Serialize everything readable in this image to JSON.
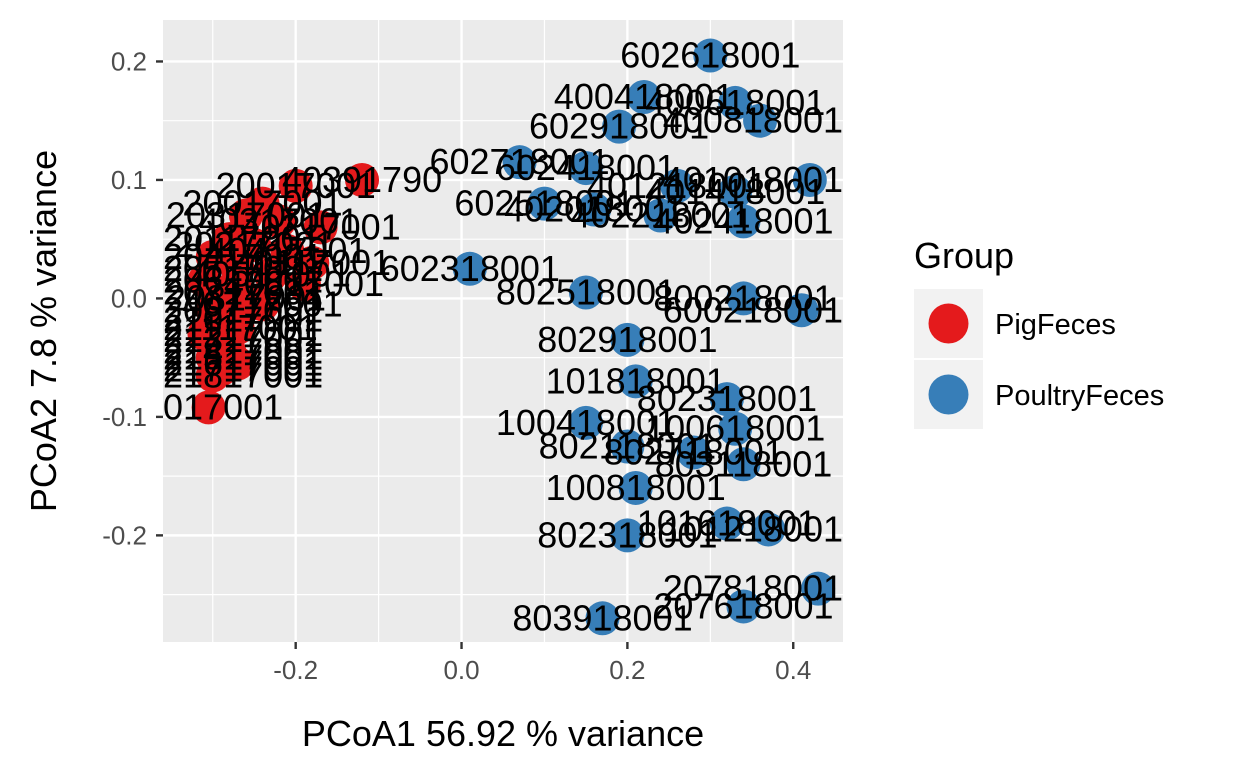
{
  "chart_data": {
    "type": "scatter",
    "xlabel": "PCoA1 56.92 % variance",
    "ylabel": "PCoA2 7.8 % variance",
    "xlim": [
      -0.36,
      0.46
    ],
    "ylim": [
      -0.29,
      0.235
    ],
    "x_ticks": [
      {
        "value": -0.2,
        "label": "-0.2"
      },
      {
        "value": 0.0,
        "label": "0.0"
      },
      {
        "value": 0.2,
        "label": "0.2"
      },
      {
        "value": 0.4,
        "label": "0.4"
      }
    ],
    "y_ticks": [
      {
        "value": 0.2,
        "label": "0.2"
      },
      {
        "value": 0.1,
        "label": "0.1"
      },
      {
        "value": 0.0,
        "label": "0.0"
      },
      {
        "value": -0.1,
        "label": "-0.1"
      },
      {
        "value": -0.2,
        "label": "-0.2"
      }
    ],
    "grid": true,
    "point_labels": true,
    "legend": {
      "title": "Group",
      "position": "right",
      "entries": [
        {
          "name": "PigFeces",
          "color": "#e41a1c"
        },
        {
          "name": "PoultryFeces",
          "color": "#377eb8"
        }
      ]
    },
    "series": [
      {
        "name": "PigFeces",
        "color": "#e41a1c",
        "points": [
          {
            "x": -0.305,
            "y": -0.092,
            "label": "017001"
          },
          {
            "x": -0.2,
            "y": 0.095,
            "label": "20017001"
          },
          {
            "x": -0.12,
            "y": 0.1,
            "label": "40391790"
          },
          {
            "x": -0.24,
            "y": 0.08,
            "label": "20017001"
          },
          {
            "x": -0.26,
            "y": 0.07,
            "label": "20317001"
          },
          {
            "x": -0.22,
            "y": 0.065,
            "label": "40317001"
          },
          {
            "x": -0.17,
            "y": 0.06,
            "label": "40217001"
          },
          {
            "x": -0.28,
            "y": 0.05,
            "label": "20117001"
          },
          {
            "x": -0.25,
            "y": 0.045,
            "label": "20217001"
          },
          {
            "x": -0.21,
            "y": 0.04,
            "label": "40417001"
          },
          {
            "x": -0.3,
            "y": 0.035,
            "label": "20417001"
          },
          {
            "x": -0.18,
            "y": 0.03,
            "label": "40117001"
          },
          {
            "x": -0.27,
            "y": 0.025,
            "label": "20517001"
          },
          {
            "x": -0.23,
            "y": 0.02,
            "label": "40517001"
          },
          {
            "x": -0.31,
            "y": 0.015,
            "label": "20617001"
          },
          {
            "x": -0.19,
            "y": 0.012,
            "label": "40617001"
          },
          {
            "x": -0.29,
            "y": 0.005,
            "label": "20717001"
          },
          {
            "x": -0.26,
            "y": 0.0,
            "label": "20817001"
          },
          {
            "x": -0.24,
            "y": -0.005,
            "label": "40717001"
          },
          {
            "x": -0.3,
            "y": -0.01,
            "label": "20917001"
          },
          {
            "x": -0.28,
            "y": -0.018,
            "label": "21017001"
          },
          {
            "x": -0.27,
            "y": -0.025,
            "label": "21117001"
          },
          {
            "x": -0.31,
            "y": -0.03,
            "label": "21217001"
          },
          {
            "x": -0.29,
            "y": -0.035,
            "label": "21317001"
          },
          {
            "x": -0.28,
            "y": -0.045,
            "label": "21417001"
          },
          {
            "x": -0.3,
            "y": -0.05,
            "label": "21517001"
          },
          {
            "x": -0.27,
            "y": -0.055,
            "label": "21617001"
          },
          {
            "x": -0.29,
            "y": -0.06,
            "label": "21717001"
          },
          {
            "x": -0.3,
            "y": -0.065,
            "label": "21817001"
          }
        ]
      },
      {
        "name": "PoultryFeces",
        "color": "#377eb8",
        "points": [
          {
            "x": 0.3,
            "y": 0.205,
            "label": "602618001"
          },
          {
            "x": 0.22,
            "y": 0.17,
            "label": "400418001"
          },
          {
            "x": 0.33,
            "y": 0.165,
            "label": "400618001"
          },
          {
            "x": 0.36,
            "y": 0.15,
            "label": "400818001"
          },
          {
            "x": 0.19,
            "y": 0.145,
            "label": "602918001"
          },
          {
            "x": 0.07,
            "y": 0.115,
            "label": "602718001"
          },
          {
            "x": 0.15,
            "y": 0.11,
            "label": "602418001"
          },
          {
            "x": 0.42,
            "y": 0.1,
            "label": "401018001"
          },
          {
            "x": 0.26,
            "y": 0.095,
            "label": "401218001"
          },
          {
            "x": 0.33,
            "y": 0.09,
            "label": "401418001"
          },
          {
            "x": 0.1,
            "y": 0.08,
            "label": "602518001"
          },
          {
            "x": 0.16,
            "y": 0.075,
            "label": "402018001"
          },
          {
            "x": 0.24,
            "y": 0.07,
            "label": "402218001"
          },
          {
            "x": 0.34,
            "y": 0.065,
            "label": "402418001"
          },
          {
            "x": 0.01,
            "y": 0.025,
            "label": "602318001"
          },
          {
            "x": 0.15,
            "y": 0.005,
            "label": "802518001"
          },
          {
            "x": 0.34,
            "y": 0.0,
            "label": "800218001"
          },
          {
            "x": 0.41,
            "y": -0.01,
            "label": "600218001"
          },
          {
            "x": 0.2,
            "y": -0.035,
            "label": "802918001"
          },
          {
            "x": 0.21,
            "y": -0.07,
            "label": "101818001"
          },
          {
            "x": 0.32,
            "y": -0.085,
            "label": "802318001"
          },
          {
            "x": 0.15,
            "y": -0.105,
            "label": "100418001"
          },
          {
            "x": 0.33,
            "y": -0.11,
            "label": "100618001"
          },
          {
            "x": 0.2,
            "y": -0.125,
            "label": "802118001"
          },
          {
            "x": 0.28,
            "y": -0.13,
            "label": "802718001"
          },
          {
            "x": 0.34,
            "y": -0.14,
            "label": "803118001"
          },
          {
            "x": 0.21,
            "y": -0.16,
            "label": "100818001"
          },
          {
            "x": 0.32,
            "y": -0.19,
            "label": "101618001"
          },
          {
            "x": 0.37,
            "y": -0.195,
            "label": "101218001"
          },
          {
            "x": 0.2,
            "y": -0.2,
            "label": "802318001"
          },
          {
            "x": 0.43,
            "y": -0.245,
            "label": "207818001"
          },
          {
            "x": 0.34,
            "y": -0.26,
            "label": "207618001"
          },
          {
            "x": 0.17,
            "y": -0.27,
            "label": "803918001"
          }
        ]
      }
    ]
  }
}
